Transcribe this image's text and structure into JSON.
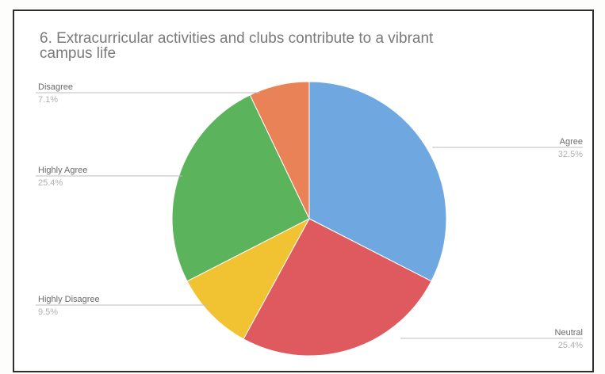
{
  "chart_data": {
    "type": "pie",
    "title_lines": [
      "6. Extracurricular activities and clubs contribute to a vibrant",
      "campus life"
    ],
    "slices": [
      {
        "label": "Agree",
        "value": 32.5,
        "display": "32.5%",
        "color": "#6fa8e0"
      },
      {
        "label": "Neutral",
        "value": 25.4,
        "display": "25.4%",
        "color": "#df5a5e"
      },
      {
        "label": "Highly Disagree",
        "value": 9.5,
        "display": "9.5%",
        "color": "#f1c232"
      },
      {
        "label": "Highly Agree",
        "value": 25.4,
        "display": "25.4%",
        "color": "#5bb35c"
      },
      {
        "label": "Disagree",
        "value": 7.1,
        "display": "7.1%",
        "color": "#ea8258"
      }
    ],
    "start_angle": "12 o'clock",
    "direction": "clockwise",
    "legend": "none (callout labels)"
  }
}
